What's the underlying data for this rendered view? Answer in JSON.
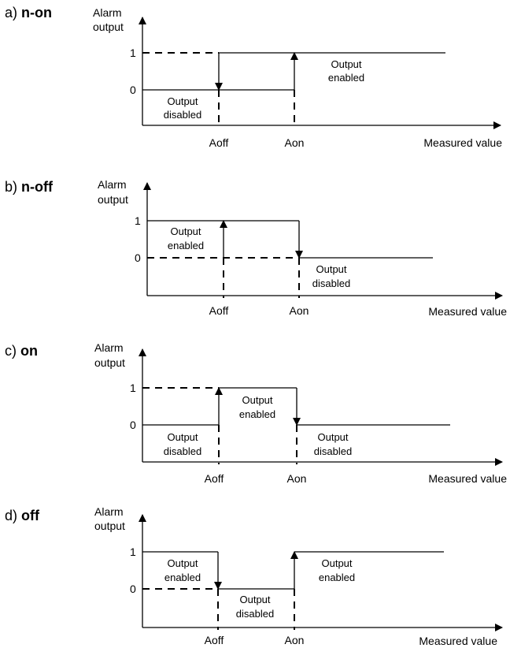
{
  "panels": [
    {
      "prefix": "a)",
      "mode": "n-on",
      "y_label_line1": "Alarm",
      "y_label_line2": "output",
      "tick_1": "1",
      "tick_0": "0",
      "aoff_label": "Aoff",
      "aon_label": "Aon",
      "x_label": "Measured value",
      "notes": [
        {
          "line1": "Output",
          "line2": "disabled"
        },
        {
          "line1": "Output",
          "line2": "enabled"
        }
      ]
    },
    {
      "prefix": "b)",
      "mode": "n-off",
      "y_label_line1": "Alarm",
      "y_label_line2": "output",
      "tick_1": "1",
      "tick_0": "0",
      "aoff_label": "Aoff",
      "aon_label": "Aon",
      "x_label": "Measured value",
      "notes": [
        {
          "line1": "Output",
          "line2": "enabled"
        },
        {
          "line1": "Output",
          "line2": "disabled"
        }
      ]
    },
    {
      "prefix": "c)",
      "mode": "on",
      "y_label_line1": "Alarm",
      "y_label_line2": "output",
      "tick_1": "1",
      "tick_0": "0",
      "aoff_label": "Aoff",
      "aon_label": "Aon",
      "x_label": "Measured value",
      "notes": [
        {
          "line1": "Output",
          "line2": "disabled"
        },
        {
          "line1": "Output",
          "line2": "enabled"
        },
        {
          "line1": "Output",
          "line2": "disabled"
        }
      ]
    },
    {
      "prefix": "d)",
      "mode": "off",
      "y_label_line1": "Alarm",
      "y_label_line2": "output",
      "tick_1": "1",
      "tick_0": "0",
      "aoff_label": "Aoff",
      "aon_label": "Aon",
      "x_label": "Measured value",
      "notes": [
        {
          "line1": "Output",
          "line2": "enabled"
        },
        {
          "line1": "Output",
          "line2": "disabled"
        },
        {
          "line1": "Output",
          "line2": "enabled"
        }
      ]
    }
  ]
}
